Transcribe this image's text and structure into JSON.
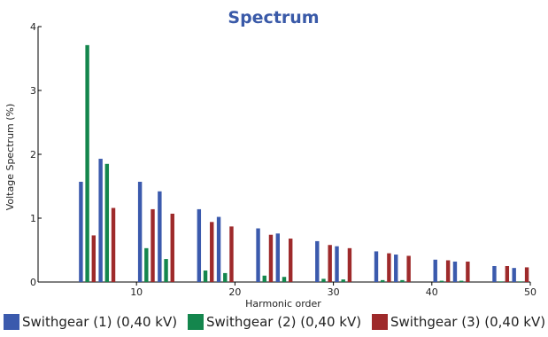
{
  "chart_data": {
    "type": "bar",
    "title": "Spectrum",
    "xlabel": "Harmonic order",
    "ylabel": "Voltage Spectrum (%)",
    "xlim": [
      0,
      50
    ],
    "ylim": [
      0,
      4
    ],
    "x_ticks": [
      10,
      20,
      30,
      40,
      50
    ],
    "y_ticks": [
      0,
      1,
      2,
      3,
      4
    ],
    "grid": false,
    "legend_position": "bottom",
    "x": [
      5,
      7,
      11,
      13,
      17,
      19,
      23,
      25,
      29,
      31,
      35,
      37,
      41,
      43,
      47,
      49
    ],
    "series": [
      {
        "name": "Swithgear (1) (0,40 kV)",
        "color": "#3b5aad",
        "values": [
          1.57,
          1.93,
          1.57,
          1.42,
          1.14,
          1.02,
          0.84,
          0.76,
          0.64,
          0.56,
          0.48,
          0.43,
          0.35,
          0.32,
          0.25,
          0.22
        ]
      },
      {
        "name": "Swithgear (2) (0,40 kV)",
        "color": "#14864d",
        "values": [
          3.71,
          1.85,
          0.53,
          0.36,
          0.18,
          0.14,
          0.1,
          0.08,
          0.05,
          0.04,
          0.03,
          0.03,
          0.02,
          0.02,
          0.01,
          0.01
        ]
      },
      {
        "name": "Swithgear (3) (0,40 kV)",
        "color": "#9e2a2b",
        "values": [
          0.73,
          1.16,
          1.14,
          1.07,
          0.94,
          0.87,
          0.74,
          0.68,
          0.58,
          0.53,
          0.45,
          0.41,
          0.34,
          0.32,
          0.25,
          0.23
        ]
      }
    ]
  }
}
